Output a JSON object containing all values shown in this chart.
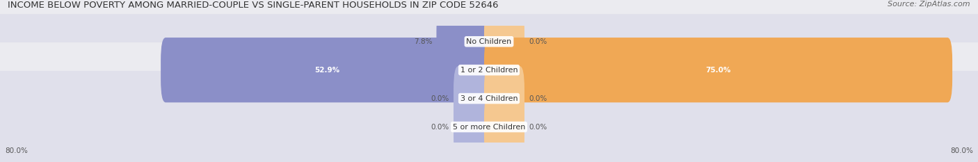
{
  "title": "INCOME BELOW POVERTY AMONG MARRIED-COUPLE VS SINGLE-PARENT HOUSEHOLDS IN ZIP CODE 52646",
  "source": "Source: ZipAtlas.com",
  "categories": [
    "No Children",
    "1 or 2 Children",
    "3 or 4 Children",
    "5 or more Children"
  ],
  "married_values": [
    7.8,
    52.9,
    0.0,
    0.0
  ],
  "single_values": [
    0.0,
    75.0,
    0.0,
    0.0
  ],
  "married_color": "#8b8fc8",
  "single_color": "#f0a855",
  "married_stub_color": "#b0b4dc",
  "single_stub_color": "#f5c890",
  "row_bg_colors": [
    "#ebebf0",
    "#e0e0eb",
    "#ebebf0",
    "#e0e0eb"
  ],
  "axis_min": -80.0,
  "axis_max": 80.0,
  "stub_size": 5.0,
  "title_fontsize": 9.5,
  "source_fontsize": 8,
  "category_fontsize": 8,
  "value_fontsize": 7.5,
  "legend_fontsize": 8
}
